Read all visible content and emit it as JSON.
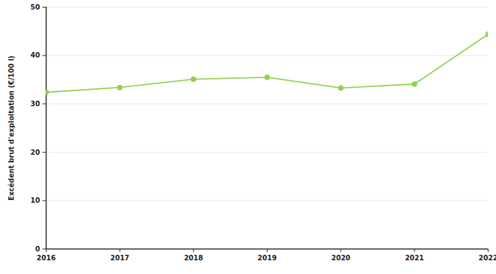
{
  "chart_data": {
    "type": "line",
    "y_label": "Excédent brut d'exploitation (€/100 l)",
    "x": [
      2016,
      2017,
      2018,
      2019,
      2020,
      2021,
      2022
    ],
    "values": [
      32.4,
      33.4,
      35.1,
      35.5,
      33.3,
      34.1,
      44.4
    ],
    "color": "#92d050",
    "marker": "circle",
    "xlim": [
      2016,
      2022
    ],
    "xticks": [
      2016,
      2017,
      2018,
      2019,
      2020,
      2021,
      2022
    ],
    "ylim": [
      0,
      50
    ],
    "yticks": [
      0,
      10,
      20,
      30,
      40,
      50
    ],
    "grid": true
  }
}
